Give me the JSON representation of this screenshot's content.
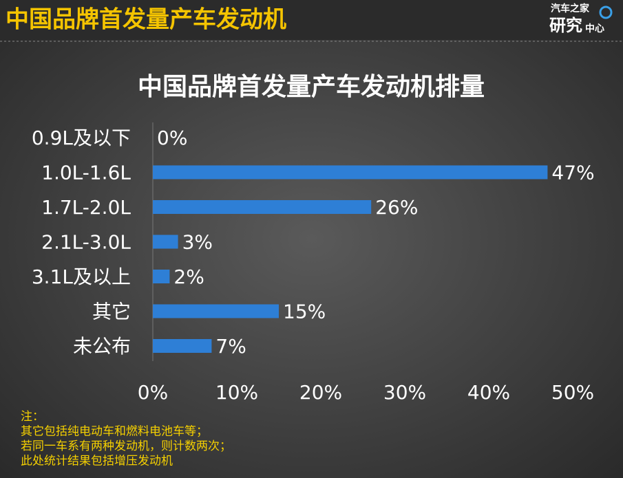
{
  "header": {
    "title": "中国品牌首发量产车发动机",
    "logo": [
      "汽车之家",
      "研究",
      "中心"
    ]
  },
  "chart_data": {
    "type": "hbar",
    "title": "中国品牌首发量产车发动机排量",
    "categories": [
      "0.9L及以下",
      "1.0L-1.6L",
      "1.7L-2.0L",
      "2.1L-3.0L",
      "3.1L及以上",
      "其它",
      "未公布"
    ],
    "values": [
      0,
      47,
      26,
      3,
      2,
      15,
      7
    ],
    "value_labels": [
      "0%",
      "47%",
      "26%",
      "3%",
      "2%",
      "15%",
      "7%"
    ],
    "color": "#2e7fd6",
    "xlim": [
      0,
      50
    ],
    "xticks": [
      {
        "value": 0,
        "label": "0%"
      },
      {
        "value": 10,
        "label": "10%"
      },
      {
        "value": 20,
        "label": "20%"
      },
      {
        "value": 30,
        "label": "30%"
      },
      {
        "value": 40,
        "label": "40%"
      },
      {
        "value": 50,
        "label": "50%"
      }
    ]
  },
  "notes": [
    "注：",
    "其它包括纯电动车和燃料电池车等；",
    "若同一车系有两种发动机，则计数两次；",
    "此处统计结果包括增压发动机"
  ]
}
